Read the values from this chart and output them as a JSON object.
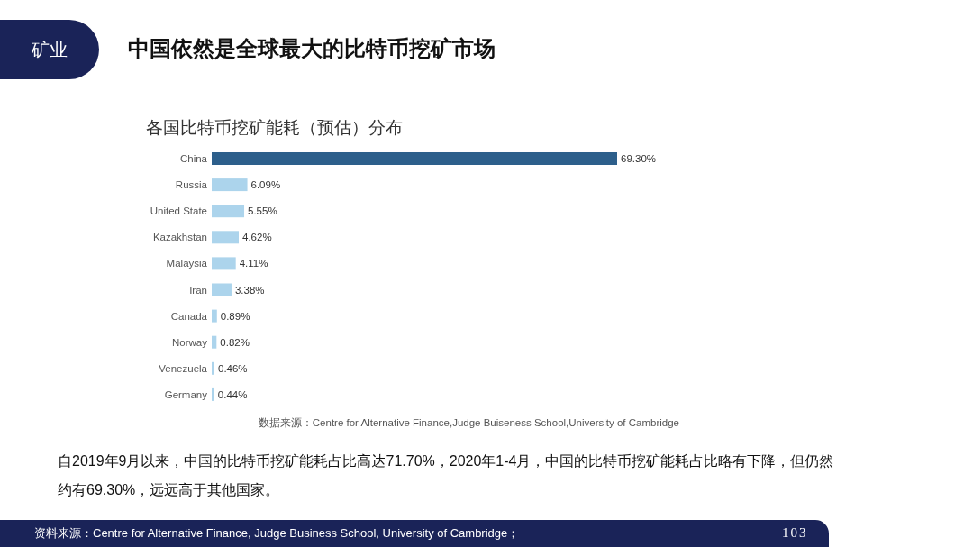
{
  "chart_data": {
    "type": "bar",
    "orientation": "horizontal",
    "title": "中国依然是全球最大的比特币挖矿市场",
    "subtitle": "各国比特币挖矿能耗（预估）分布",
    "categories": [
      "China",
      "Russia",
      "United State",
      "Kazakhstan",
      "Malaysia",
      "Iran",
      "Canada",
      "Norway",
      "Venezuela",
      "Germany"
    ],
    "values": [
      69.3,
      6.09,
      5.55,
      4.62,
      4.11,
      3.38,
      0.89,
      0.82,
      0.46,
      0.44
    ],
    "colors": [
      "#2d5f8b",
      "#acd4ec",
      "#acd4ec",
      "#acd4ec",
      "#acd4ec",
      "#acd4ec",
      "#acd4ec",
      "#acd4ec",
      "#acd4ec",
      "#acd4ec"
    ],
    "value_labels": [
      "69.30%",
      "6.09%",
      "5.55%",
      "4.62%",
      "4.11%",
      "3.38%",
      "0.89%",
      "0.82%",
      "0.46%",
      "0.44%"
    ],
    "annotations": [
      "矿业",
      "数据来源：Centre for Alternative Finance,Judge Buiseness School,University of Cambridge",
      "自2019年9月以来，中国的比特币挖矿能耗占比高达71.70%，2020年1-4月，中国的比特币挖矿能耗占比略有下降，但仍然约有69.30%，远远高于其他国家。",
      "资料来源：Centre for Alternative Finance, Judge Business School, University of Cambridge；",
      "103"
    ]
  }
}
